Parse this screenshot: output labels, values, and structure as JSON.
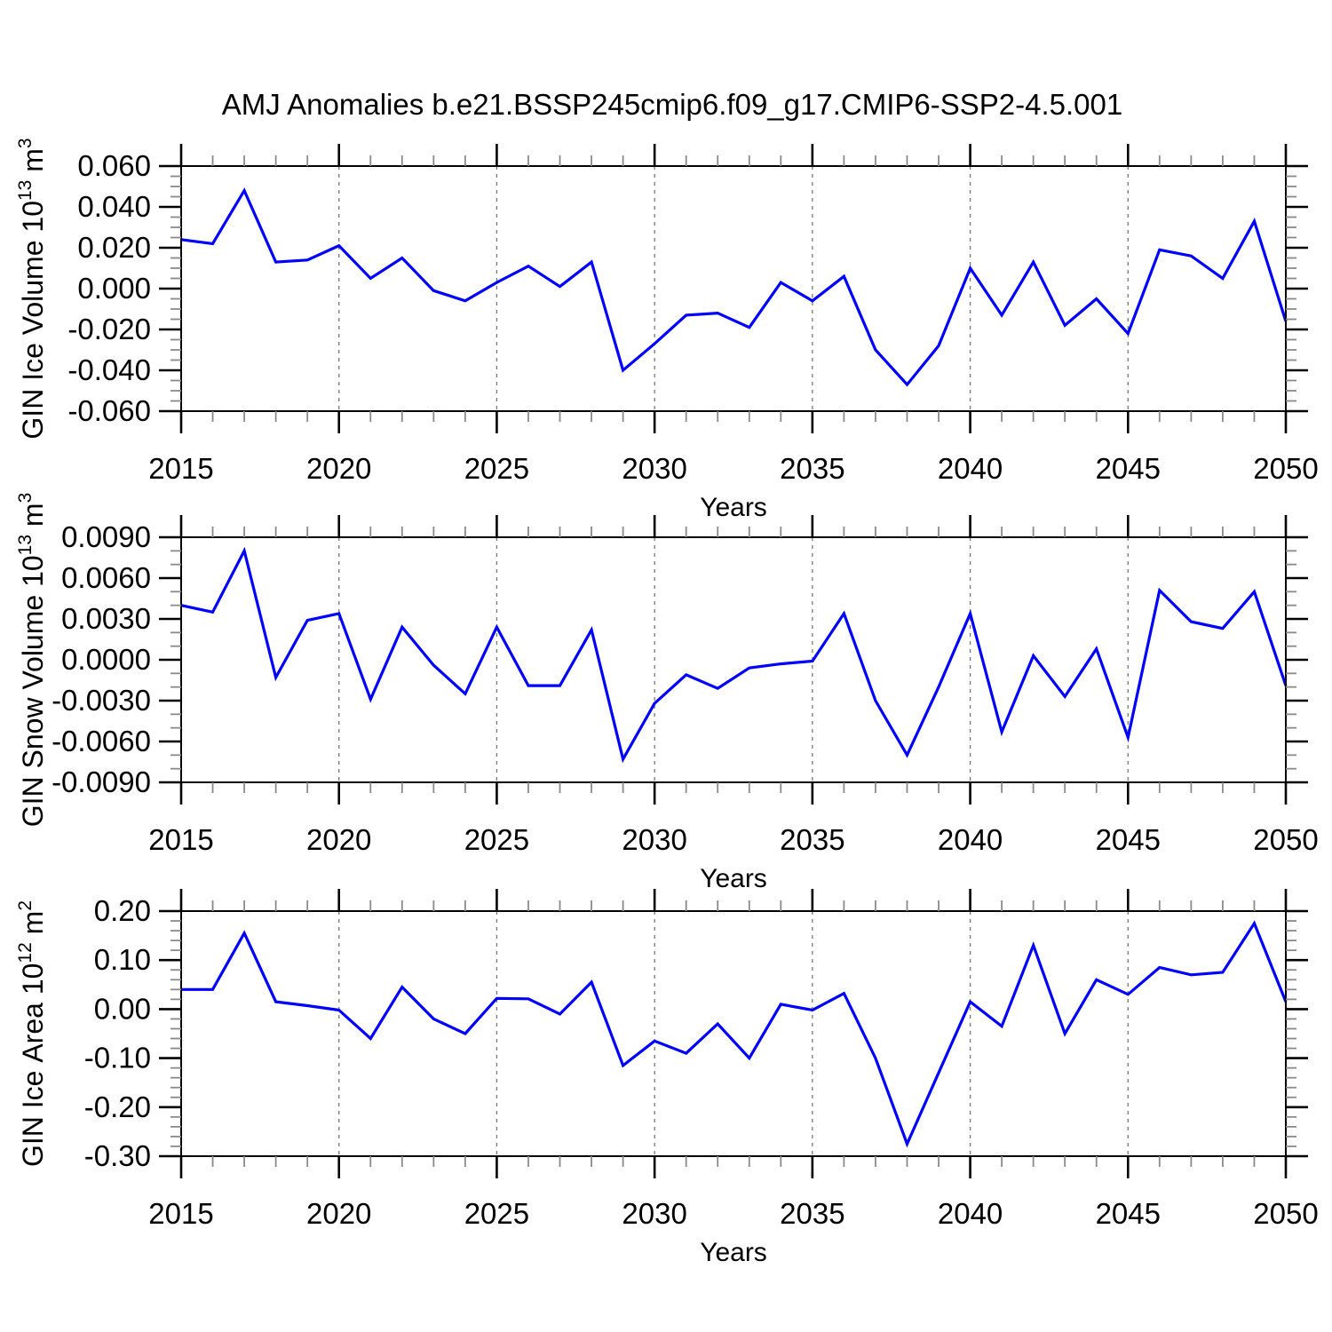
{
  "title": "AMJ Anomalies b.e21.BSSP245cmip6.f09_g17.CMIP6-SSP2-4.5.001",
  "colors": {
    "line": "#0000ff",
    "frame": "#000000",
    "minor_tick": "#8a8a8a",
    "grid": "#777777",
    "text": "#000000",
    "background": "#ffffff"
  },
  "years": [
    2015,
    2016,
    2017,
    2018,
    2019,
    2020,
    2021,
    2022,
    2023,
    2024,
    2025,
    2026,
    2027,
    2028,
    2029,
    2030,
    2031,
    2032,
    2033,
    2034,
    2035,
    2036,
    2037,
    2038,
    2039,
    2040,
    2041,
    2042,
    2043,
    2044,
    2045,
    2046,
    2047,
    2048,
    2049,
    2050
  ],
  "chart_data": [
    {
      "type": "line",
      "id": "gin-ice-volume",
      "ylabel": "GIN Ice Volume 10^13 m^3",
      "xlabel": "Years",
      "x_range": [
        2015,
        2050
      ],
      "ylim": [
        -0.06,
        0.06
      ],
      "grid": "vertical-dashed",
      "x_tick_labels": [
        "2015",
        "2020",
        "2025",
        "2030",
        "2035",
        "2040",
        "2045",
        "2050"
      ],
      "y_tick_labels": [
        "0.060",
        "0.040",
        "0.020",
        "0.000",
        "-0.020",
        "-0.040",
        "-0.060"
      ],
      "y_minor_step": 0.005,
      "values": [
        0.024,
        0.022,
        0.048,
        0.013,
        0.014,
        0.021,
        0.005,
        0.015,
        -0.001,
        -0.006,
        0.003,
        0.011,
        0.001,
        0.013,
        -0.04,
        -0.027,
        -0.013,
        -0.012,
        -0.019,
        0.003,
        -0.006,
        0.006,
        -0.03,
        -0.047,
        -0.028,
        0.01,
        -0.013,
        0.013,
        -0.018,
        -0.005,
        -0.022,
        0.019,
        0.016,
        0.005,
        0.033,
        -0.016
      ]
    },
    {
      "type": "line",
      "id": "gin-snow-volume",
      "ylabel": "GIN Snow Volume 10^13 m^3",
      "xlabel": "Years",
      "x_range": [
        2015,
        2050
      ],
      "ylim": [
        -0.009,
        0.009
      ],
      "grid": "vertical-dashed",
      "x_tick_labels": [
        "2015",
        "2020",
        "2025",
        "2030",
        "2035",
        "2040",
        "2045",
        "2050"
      ],
      "y_tick_labels": [
        "0.0090",
        "0.0060",
        "0.0030",
        "0.0000",
        "-0.0030",
        "-0.0060",
        "-0.0090"
      ],
      "y_minor_step": 0.001,
      "values": [
        0.004,
        0.0035,
        0.008,
        -0.0013,
        0.0029,
        0.0034,
        -0.0029,
        0.0024,
        -0.0004,
        -0.0025,
        0.0024,
        -0.0019,
        -0.0019,
        0.0022,
        -0.0073,
        -0.0032,
        -0.0011,
        -0.0021,
        -0.0006,
        -0.0003,
        -0.0001,
        0.0034,
        -0.003,
        -0.007,
        -0.002,
        0.0034,
        -0.0053,
        0.0003,
        -0.0027,
        0.0008,
        -0.0057,
        0.0051,
        0.0028,
        0.0023,
        0.005,
        -0.0019
      ]
    },
    {
      "type": "line",
      "id": "gin-ice-area",
      "ylabel": "GIN Ice Area 10^12 m^2",
      "xlabel": "Years",
      "x_range": [
        2015,
        2050
      ],
      "ylim": [
        -0.3,
        0.2
      ],
      "grid": "vertical-dashed",
      "x_tick_labels": [
        "2015",
        "2020",
        "2025",
        "2030",
        "2035",
        "2040",
        "2045",
        "2050"
      ],
      "y_tick_labels": [
        "0.20",
        "0.10",
        "0.00",
        "-0.10",
        "-0.20",
        "-0.30"
      ],
      "y_minor_step": 0.02,
      "values": [
        0.04,
        0.04,
        0.155,
        0.015,
        0.007,
        -0.002,
        -0.06,
        0.045,
        -0.02,
        -0.05,
        0.022,
        0.021,
        -0.01,
        0.055,
        -0.115,
        -0.065,
        -0.09,
        -0.03,
        -0.1,
        0.01,
        -0.002,
        0.032,
        -0.1,
        -0.275,
        -0.13,
        0.015,
        -0.035,
        0.13,
        -0.05,
        0.06,
        0.03,
        0.085,
        0.07,
        0.075,
        0.175,
        0.015
      ]
    }
  ]
}
